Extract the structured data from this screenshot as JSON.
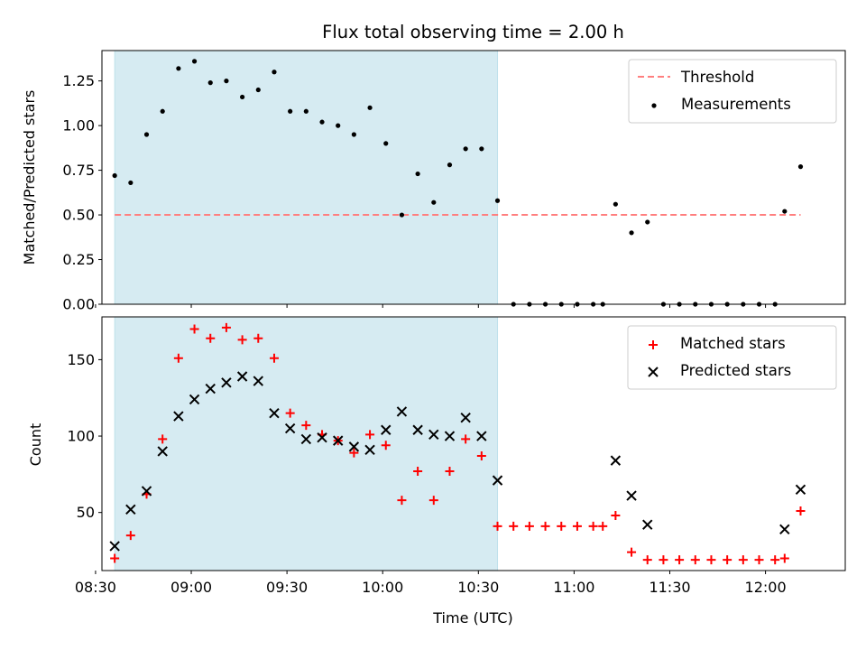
{
  "chart_data": {
    "title": "Flux total observing time = 2.00 h",
    "xlabel": "Time (UTC)",
    "xlim": [
      "08:32",
      "12:25"
    ],
    "x_ticks": [
      "08:30",
      "09:00",
      "09:30",
      "10:00",
      "10:30",
      "11:00",
      "11:30",
      "12:00"
    ],
    "shaded_region": {
      "start": "08:36",
      "end": "10:36",
      "color": "#add8e6"
    },
    "times": [
      "08:36",
      "08:41",
      "08:46",
      "08:51",
      "08:56",
      "09:01",
      "09:06",
      "09:11",
      "09:16",
      "09:21",
      "09:26",
      "09:31",
      "09:36",
      "09:41",
      "09:46",
      "09:51",
      "09:56",
      "10:01",
      "10:06",
      "10:11",
      "10:16",
      "10:21",
      "10:26",
      "10:31",
      "10:36",
      "10:41",
      "10:46",
      "10:51",
      "10:56",
      "11:01",
      "11:06",
      "11:09",
      "11:13",
      "11:18",
      "11:23",
      "11:28",
      "11:33",
      "11:38",
      "11:43",
      "11:48",
      "11:53",
      "11:58",
      "12:03",
      "12:06",
      "12:11"
    ],
    "panels": [
      {
        "type": "scatter",
        "ylabel": "Matched/Predicted stars",
        "ylim": [
          0,
          1.42
        ],
        "y_ticks": [
          "0.00",
          "0.25",
          "0.50",
          "0.75",
          "1.00",
          "1.25"
        ],
        "threshold": {
          "name": "Threshold",
          "value": 0.5,
          "color": "#ff7f7f",
          "style": "dashed"
        },
        "series": [
          {
            "name": "Measurements",
            "marker": "dot",
            "color": "#000000",
            "values": [
              0.72,
              0.68,
              0.95,
              1.08,
              1.32,
              1.36,
              1.24,
              1.25,
              1.16,
              1.2,
              1.3,
              1.08,
              1.08,
              1.02,
              1.0,
              0.95,
              1.1,
              0.9,
              0.5,
              0.73,
              0.57,
              0.78,
              0.87,
              0.87,
              0.58,
              0,
              0,
              0,
              0,
              0,
              0,
              0,
              0.56,
              0.4,
              0.46,
              0,
              0,
              0,
              0,
              0,
              0,
              0,
              0,
              0.52,
              0.77
            ]
          }
        ],
        "legend_position": "upper right"
      },
      {
        "type": "scatter",
        "ylabel": "Count",
        "ylim": [
          12,
          178
        ],
        "y_ticks": [
          "50",
          "100",
          "150"
        ],
        "series": [
          {
            "name": "Matched stars",
            "marker": "plus",
            "color": "#ff0000",
            "values": [
              20,
              35,
              62,
              98,
              151,
              170,
              164,
              171,
              163,
              164,
              151,
              115,
              107,
              101,
              97,
              89,
              101,
              94,
              58,
              77,
              58,
              77,
              98,
              87,
              41,
              41,
              41,
              41,
              41,
              41,
              41,
              41,
              48,
              24,
              19,
              19,
              19,
              19,
              19,
              19,
              19,
              19,
              19,
              20,
              51
            ]
          },
          {
            "name": "Predicted stars",
            "marker": "x",
            "color": "#000000",
            "values": [
              28,
              52,
              64,
              90,
              113,
              124,
              131,
              135,
              139,
              136,
              115,
              105,
              98,
              99,
              97,
              93,
              91,
              104,
              116,
              104,
              101,
              100,
              112,
              100,
              71,
              null,
              null,
              null,
              null,
              null,
              null,
              null,
              84,
              61,
              42,
              null,
              null,
              null,
              null,
              null,
              null,
              null,
              null,
              39,
              65
            ]
          }
        ],
        "legend_position": "upper right"
      }
    ]
  }
}
